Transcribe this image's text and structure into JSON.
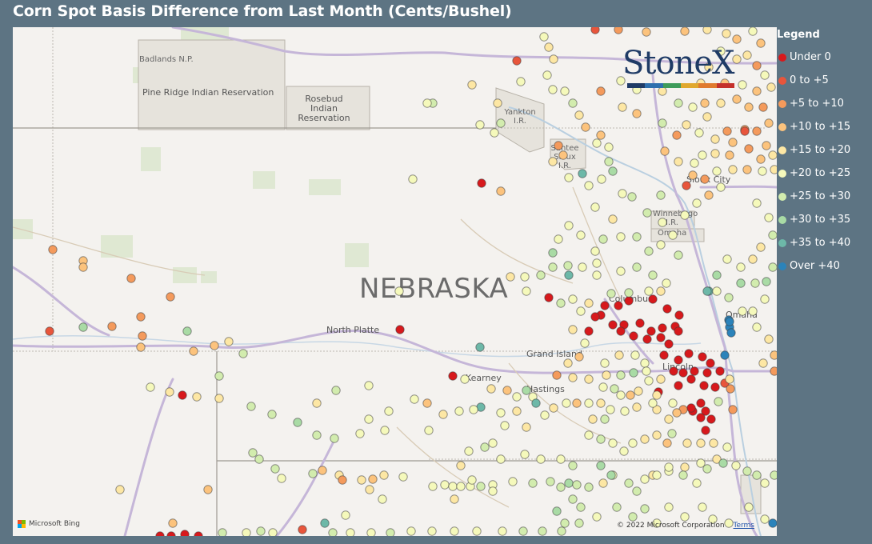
{
  "title": "Corn Spot Basis Difference from Last Month (Cents/Bushel)",
  "legend": {
    "title": "Legend",
    "items": [
      {
        "label": "Under 0",
        "color": "#d7191c"
      },
      {
        "label": "0 to +5",
        "color": "#e8553b"
      },
      {
        "label": "+5 to +10",
        "color": "#f49a5c"
      },
      {
        "label": "+10 to +15",
        "color": "#fcc37d"
      },
      {
        "label": "+15 to +20",
        "color": "#fde7a4"
      },
      {
        "label": "+20 to +25",
        "color": "#f5f9bb"
      },
      {
        "label": "+25 to +30",
        "color": "#d2ecae"
      },
      {
        "label": "+30 to +35",
        "color": "#a9dba5"
      },
      {
        "label": "+35 to +40",
        "color": "#6db8a8"
      },
      {
        "label": "Over +40",
        "color": "#2b83ba"
      }
    ]
  },
  "map": {
    "state_label": "NEBRASKA",
    "places": {
      "badlands": "Badlands N.P.",
      "pine_ridge": "Pine Ridge Indian Reservation",
      "rosebud": "Rosebud Indian Reservation",
      "yankton": "Yankton I.R.",
      "santee": "Santee Sioux I.R.",
      "sioux_city": "Sioux City",
      "winnebago": "Winnebago I.R.",
      "omaha_ir": "Omaha",
      "omaha": "Omaha",
      "columbus": "Columbus",
      "lincoln": "Lincoln",
      "north_platte": "North Platte",
      "grand_island": "Grand Island",
      "kearney": "Kearney",
      "hastings": "Hastings"
    },
    "logo": "StoneX",
    "attribution": "Microsoft Bing",
    "copyright": "© 2022 Microsoft Corporation",
    "terms": "Terms"
  }
}
